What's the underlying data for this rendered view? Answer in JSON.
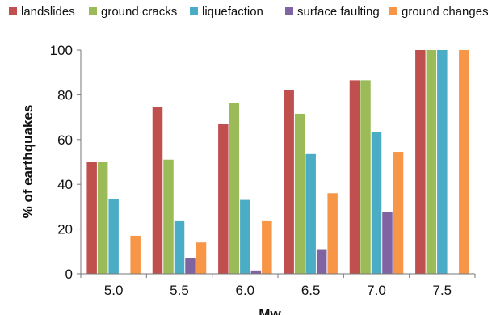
{
  "chart_data": {
    "type": "bar",
    "title": "",
    "xlabel": "Mw",
    "ylabel": "% of earthquakes",
    "categories": [
      "5.0",
      "5.5",
      "6.0",
      "6.5",
      "7.0",
      "7.5"
    ],
    "ylim": [
      0,
      100
    ],
    "yticks": [
      "0",
      "20",
      "40",
      "60",
      "80",
      "100"
    ],
    "grid": false,
    "legend_position": "top",
    "series": [
      {
        "name": "landslides",
        "color": "#c0504d",
        "values": [
          50,
          74.5,
          67,
          82,
          86.5,
          100
        ]
      },
      {
        "name": "ground cracks",
        "color": "#9bbb59",
        "values": [
          50,
          51,
          76.5,
          71.5,
          86.5,
          100
        ]
      },
      {
        "name": "liquefaction",
        "color": "#4bacc6",
        "values": [
          33.5,
          23.5,
          33,
          53.5,
          63.5,
          100
        ]
      },
      {
        "name": "surface faulting",
        "color": "#8064a2",
        "values": [
          0,
          7,
          1.5,
          11,
          27.5,
          0
        ]
      },
      {
        "name": "ground changes",
        "color": "#f79646",
        "values": [
          17,
          14,
          23.5,
          36,
          54.5,
          100
        ]
      }
    ]
  }
}
